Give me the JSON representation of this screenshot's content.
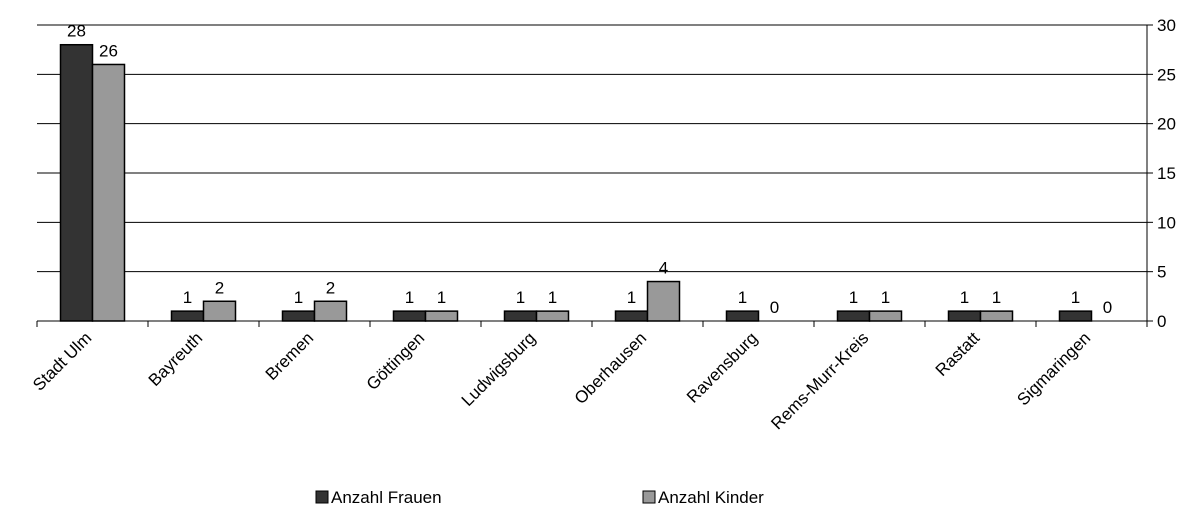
{
  "chart_data": {
    "type": "bar",
    "categories": [
      "Stadt Ulm",
      "Bayreuth",
      "Bremen",
      "Göttingen",
      "Ludwigsburg",
      "Oberhausen",
      "Ravensburg",
      "Rems-Murr-Kreis",
      "Rastatt",
      "Sigmaringen"
    ],
    "series": [
      {
        "name": "Anzahl Frauen",
        "color": "#333333",
        "values": [
          28,
          1,
          1,
          1,
          1,
          1,
          1,
          1,
          1,
          1
        ]
      },
      {
        "name": "Anzahl Kinder",
        "color": "#999999",
        "values": [
          26,
          2,
          2,
          1,
          1,
          4,
          0,
          1,
          1,
          0
        ]
      }
    ],
    "ylim": [
      0,
      30
    ],
    "yticks": [
      0,
      5,
      10,
      15,
      20,
      25,
      30
    ],
    "grid": true,
    "y_axis_side": "right",
    "legend": "bottom"
  }
}
